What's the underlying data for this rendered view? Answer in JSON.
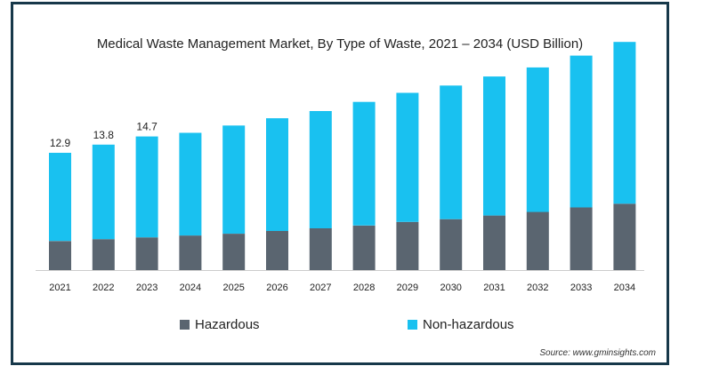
{
  "colors": {
    "hazardous": "#5a6570",
    "non_hazardous": "#19c1f0",
    "frame": "#17384a"
  },
  "chart_data": {
    "type": "bar",
    "stacked": true,
    "title": "Medical Waste Management Market, By Type of Waste, 2021 – 2034 (USD Billion)",
    "categories": [
      "2021",
      "2022",
      "2023",
      "2024",
      "2025",
      "2026",
      "2027",
      "2028",
      "2029",
      "2030",
      "2031",
      "2032",
      "2033",
      "2034"
    ],
    "series": [
      {
        "name": "Hazardous",
        "values": [
          3.2,
          3.4,
          3.6,
          3.8,
          4.0,
          4.3,
          4.6,
          4.9,
          5.3,
          5.6,
          6.0,
          6.4,
          6.9,
          7.3
        ]
      },
      {
        "name": "Non-hazardous",
        "values": [
          9.7,
          10.4,
          11.1,
          11.3,
          11.9,
          12.4,
          12.9,
          13.6,
          14.2,
          14.7,
          15.3,
          15.9,
          16.7,
          17.8
        ]
      }
    ],
    "data_labels": [
      "12.9",
      "13.8",
      "14.7",
      "",
      "",
      "",
      "",
      "",
      "",
      "",
      "",
      "",
      "",
      ""
    ],
    "ylim": [
      0,
      26
    ],
    "grid": false,
    "legend_position": "bottom",
    "source": "Source: www.gminsights.com"
  }
}
